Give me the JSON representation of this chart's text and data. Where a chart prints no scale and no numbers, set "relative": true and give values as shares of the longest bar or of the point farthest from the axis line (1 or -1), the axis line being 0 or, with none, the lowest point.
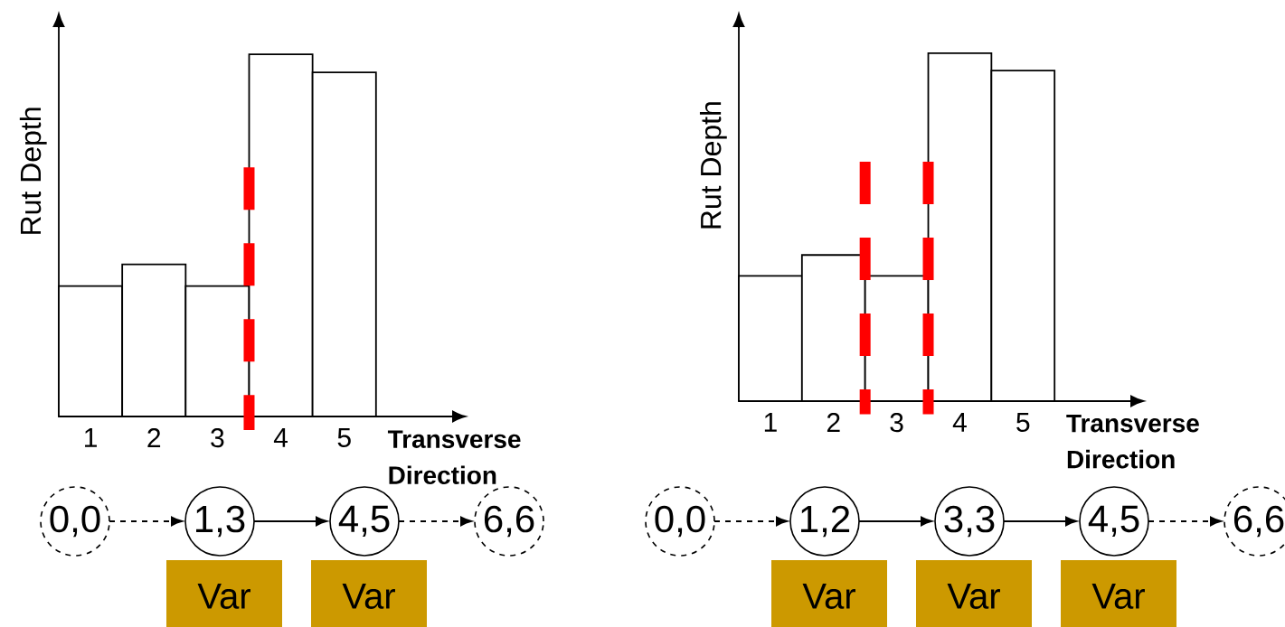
{
  "chart_data": [
    {
      "type": "bar",
      "x": [
        1,
        2,
        3,
        4,
        5
      ],
      "values": [
        0.36,
        0.42,
        0.36,
        1,
        0.95
      ],
      "color": "#ffffff",
      "relative": true,
      "xlim": [
        0.5,
        6.7
      ],
      "xticks": [
        1,
        2,
        3,
        4,
        5
      ],
      "xlabel": "Transverse Direction",
      "ylabel": "Rut Depth",
      "ref_lines": [
        {
          "axis": "x",
          "value": 3.5,
          "color": "#ff0000",
          "line_style": "dashed"
        }
      ],
      "annotations": [
        "0,0",
        "1,3",
        "4,5",
        "6,6",
        "Var",
        "Var"
      ]
    },
    {
      "type": "bar",
      "x": [
        1,
        2,
        3,
        4,
        5
      ],
      "values": [
        0.36,
        0.42,
        0.36,
        1,
        0.95
      ],
      "color": "#ffffff",
      "relative": true,
      "xlim": [
        0.5,
        6.7
      ],
      "xticks": [
        1,
        2,
        3,
        4,
        5
      ],
      "xlabel": "Transverse Direction",
      "ylabel": "Rut Depth",
      "ref_lines": [
        {
          "axis": "x",
          "value": 2.5,
          "color": "#ff0000",
          "line_style": "dashed"
        },
        {
          "axis": "x",
          "value": 3.5,
          "color": "#ff0000",
          "line_style": "dashed"
        }
      ],
      "annotations": [
        "0,0",
        "1,2",
        "3,3",
        "4,5",
        "6,6",
        "Var",
        "Var",
        "Var"
      ]
    }
  ]
}
